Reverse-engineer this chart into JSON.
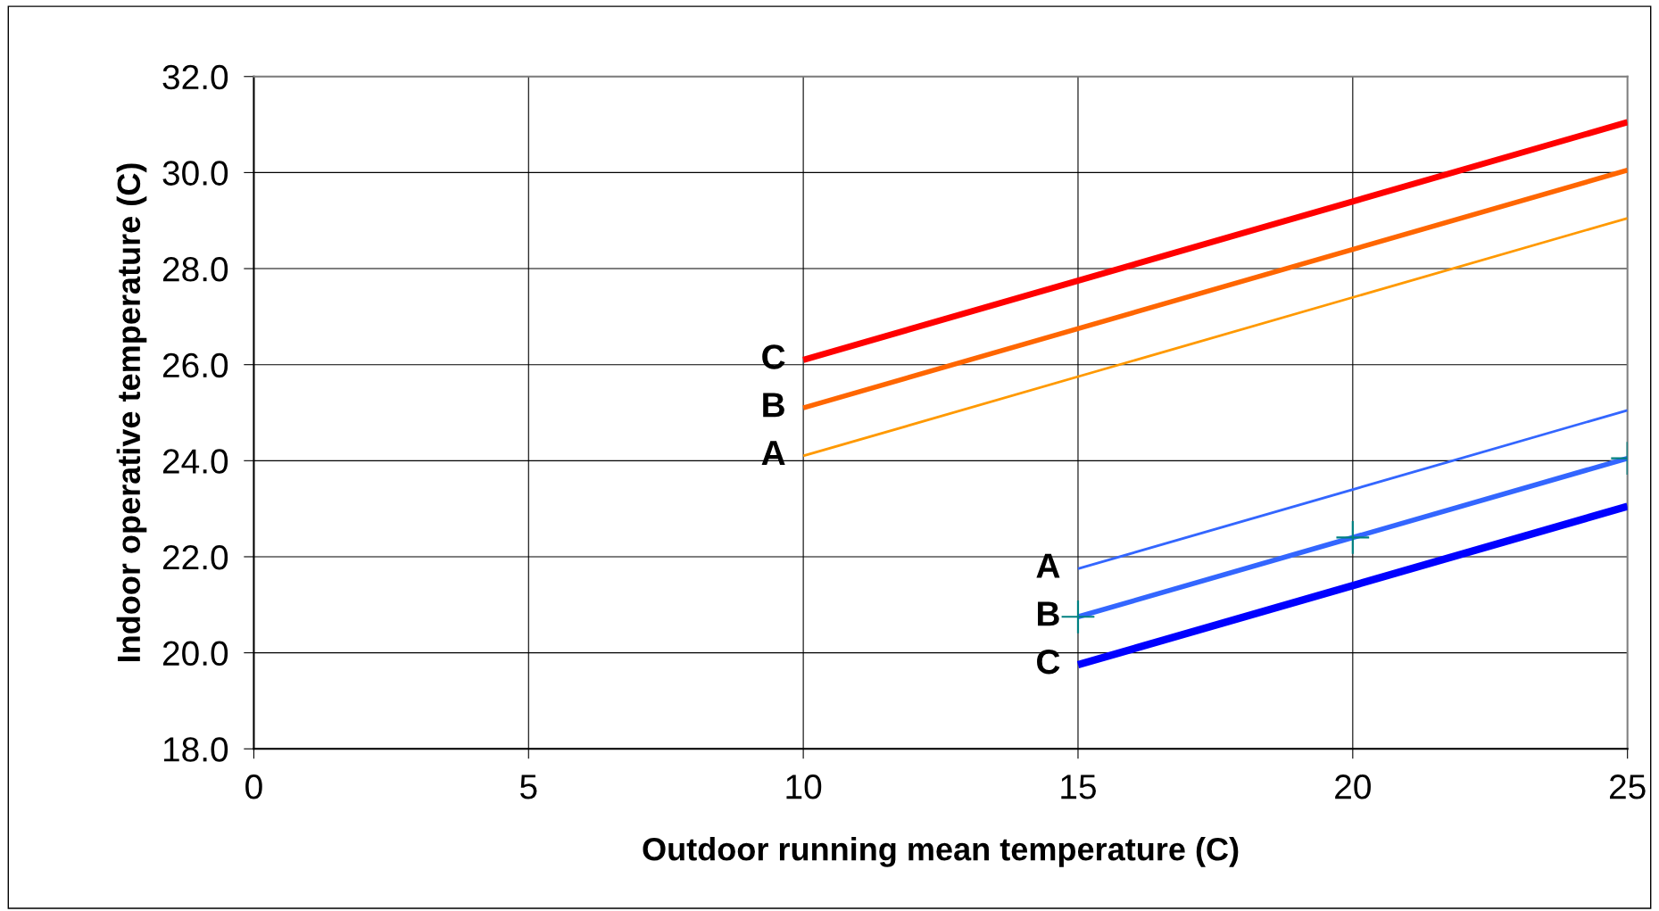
{
  "chart_data": {
    "type": "line",
    "xlabel": "Outdoor running mean temperature (C)",
    "ylabel": "Indoor operative temperature (C)",
    "series": [
      {
        "name": "C",
        "color": "#ff0000",
        "x": [
          10,
          25
        ],
        "values": [
          26.1,
          31.05
        ]
      },
      {
        "name": "B",
        "color": "#ff6600",
        "x": [
          10,
          25
        ],
        "values": [
          25.1,
          30.05
        ]
      },
      {
        "name": "A",
        "color": "#ff9900",
        "x": [
          10,
          25
        ],
        "values": [
          24.1,
          29.05
        ]
      },
      {
        "name": "A",
        "color": "#3366ff",
        "x": [
          15,
          25
        ],
        "values": [
          21.75,
          25.05
        ]
      },
      {
        "name": "B",
        "color": "#3366ff",
        "x": [
          15,
          25
        ],
        "values": [
          20.75,
          24.05
        ]
      },
      {
        "name": "C",
        "color": "#0000ff",
        "x": [
          15,
          25
        ],
        "values": [
          19.75,
          23.05
        ]
      },
      {
        "type": "scatter",
        "marker": "cross",
        "color": "#008080",
        "x": [
          15,
          20,
          25
        ],
        "values": [
          20.75,
          22.4,
          24.05
        ]
      }
    ],
    "xlim": [
      0,
      25
    ],
    "xticks": [
      0,
      5,
      10,
      15,
      20,
      25
    ],
    "ylim": [
      18,
      32
    ],
    "yticks": [
      {
        "value": 18,
        "label": "18.0"
      },
      {
        "value": 20,
        "label": "20.0"
      },
      {
        "value": 22,
        "label": "22.0"
      },
      {
        "value": 24,
        "label": "24.0"
      },
      {
        "value": 26,
        "label": "26.0"
      },
      {
        "value": 28,
        "label": "28.0"
      },
      {
        "value": 30,
        "label": "30.0"
      },
      {
        "value": 32,
        "label": "32.0"
      }
    ],
    "grid": true,
    "marker": "none",
    "line_style": "solid"
  }
}
